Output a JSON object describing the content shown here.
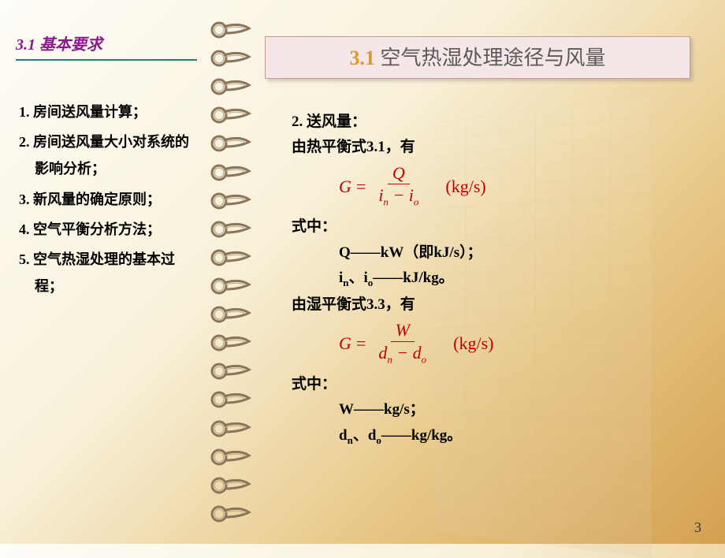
{
  "sidebar": {
    "title": "3.1 基本要求",
    "items": [
      "1. 房间送风量计算；",
      "2. 房间送风量大小对系统的影响分析；",
      "3. 新风量的确定原则；",
      "4. 空气平衡分析方法；",
      "5. 空气热湿处理的基本过程；"
    ]
  },
  "header": {
    "num": "3.1",
    "text": " 空气热湿处理途径与风量"
  },
  "content": {
    "line1": "2. 送风量：",
    "line2": "由热平衡式3.1，有",
    "formula1": {
      "lhs": "G",
      "top": "Q",
      "botL": "i",
      "subL": "n",
      "minus": "−",
      "botR": "i",
      "subR": "o",
      "unit": "(kg/s)"
    },
    "line3": "式中：",
    "line4a": "Q——kW（即kJ/s）；",
    "line4b_pre": "i",
    "line4b_sub1": "n",
    "line4b_mid": "、i",
    "line4b_sub2": "o",
    "line4b_post": "——kJ/kg。",
    "line5": "由湿平衡式3.3，有",
    "formula2": {
      "lhs": "G",
      "top": "W",
      "botL": "d",
      "subL": "n",
      "minus": "−",
      "botR": "d",
      "subR": "o",
      "unit": "(kg/s)"
    },
    "line6": "式中：",
    "line7a": "W——kg/s；",
    "line7b_pre": "d",
    "line7b_sub1": "n",
    "line7b_mid": "、d",
    "line7b_sub2": "o",
    "line7b_post": "——kg/kg。"
  },
  "pageNum": "3",
  "style": {
    "ringCount": 18,
    "ringColor": "#8a745a",
    "ringLight": "#c4b090",
    "headerBg": "#f5e6e8",
    "headerNumColor": "#d99a33",
    "formulaColor": "#c00000",
    "sidebarTitleColor": "#8a1a8a",
    "sidebarLineColor": "#2a7a7a"
  }
}
